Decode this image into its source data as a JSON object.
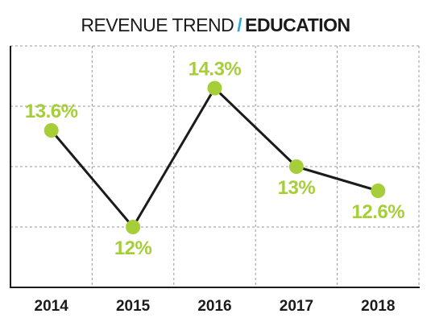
{
  "chart_data": {
    "type": "line",
    "title": "REVENUE TREND",
    "title_separator": "/",
    "title_accent": "EDUCATION",
    "categories": [
      "2014",
      "2015",
      "2016",
      "2017",
      "2018"
    ],
    "series": [
      {
        "values": [
          13.6,
          12.0,
          14.3,
          13.0,
          12.6
        ],
        "data_labels": [
          "13.6%",
          "12%",
          "14.3%",
          "13%",
          "12.6%"
        ]
      }
    ],
    "xlabel": "",
    "ylabel": "",
    "ylim": [
      11,
      15
    ],
    "grid": true,
    "colors": {
      "line": "#1b1b1b",
      "marker": "#a6ce39",
      "label": "#a6ce39",
      "grid": "#999999",
      "axis": "#1b1b1b",
      "separator": "#29a8e0"
    }
  }
}
